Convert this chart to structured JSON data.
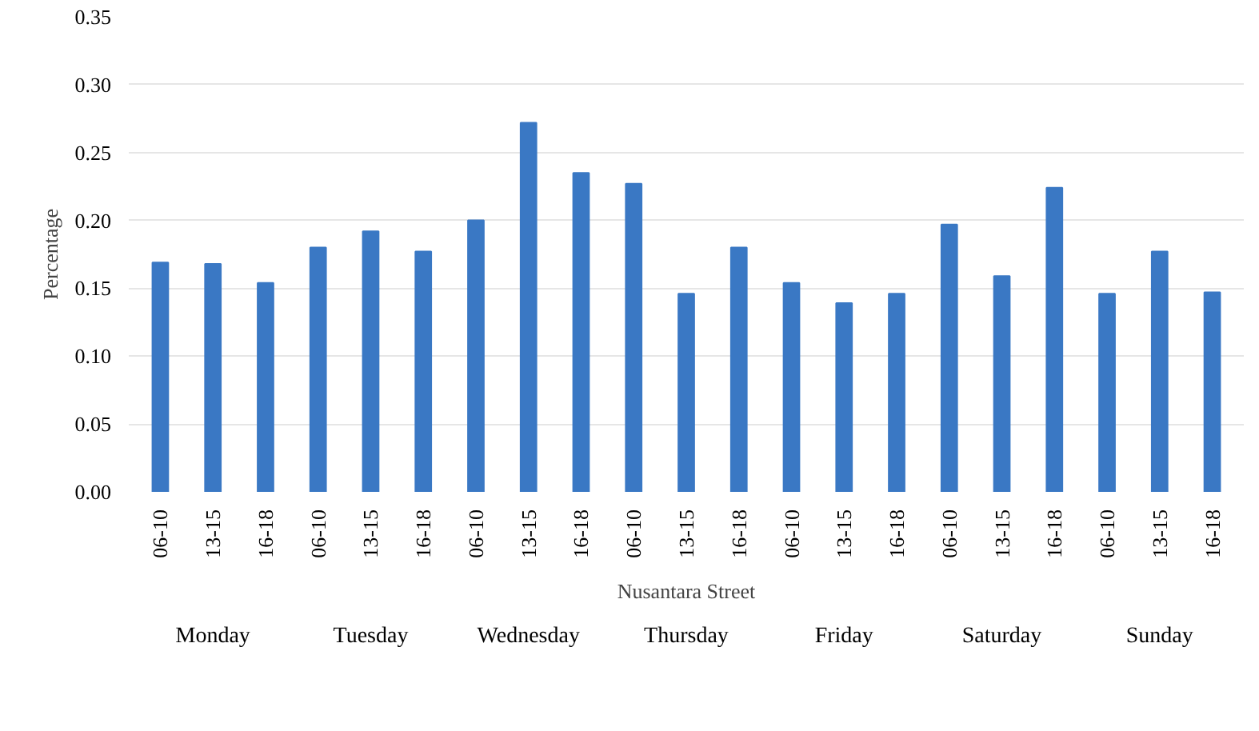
{
  "chart_data": {
    "type": "bar",
    "xlabel": "Nusantara Street",
    "ylabel": "Percentage",
    "categories": [
      "06-10",
      "13-15",
      "16-18",
      "06-10",
      "13-15",
      "16-18",
      "06-10",
      "13-15",
      "16-18",
      "06-10",
      "13-15",
      "16-18",
      "06-10",
      "13-15",
      "16-18",
      "06-10",
      "13-15",
      "16-18",
      "06-10",
      "13-15",
      "16-18"
    ],
    "values": [
      0.169,
      0.168,
      0.154,
      0.18,
      0.192,
      0.177,
      0.2,
      0.272,
      0.235,
      0.227,
      0.146,
      0.18,
      0.154,
      0.139,
      0.146,
      0.197,
      0.159,
      0.224,
      0.146,
      0.177,
      0.147
    ],
    "color": "#3a78c4",
    "ylim": [
      0,
      0.35
    ],
    "yticks": [
      {
        "value": 0,
        "label": "0.00"
      },
      {
        "value": 0.05,
        "label": "0.05"
      },
      {
        "value": 0.1,
        "label": "0.10"
      },
      {
        "value": 0.15,
        "label": "0.15"
      },
      {
        "value": 0.2,
        "label": "0.20"
      },
      {
        "value": 0.25,
        "label": "0.25"
      },
      {
        "value": 0.3,
        "label": "0.30"
      },
      {
        "value": 0.35,
        "label": "0.35"
      }
    ],
    "grid": "y",
    "annotations": [
      "Monday",
      "Tuesday",
      "Wednesday",
      "Thursday",
      "Friday",
      "Saturday",
      "Sunday"
    ]
  }
}
